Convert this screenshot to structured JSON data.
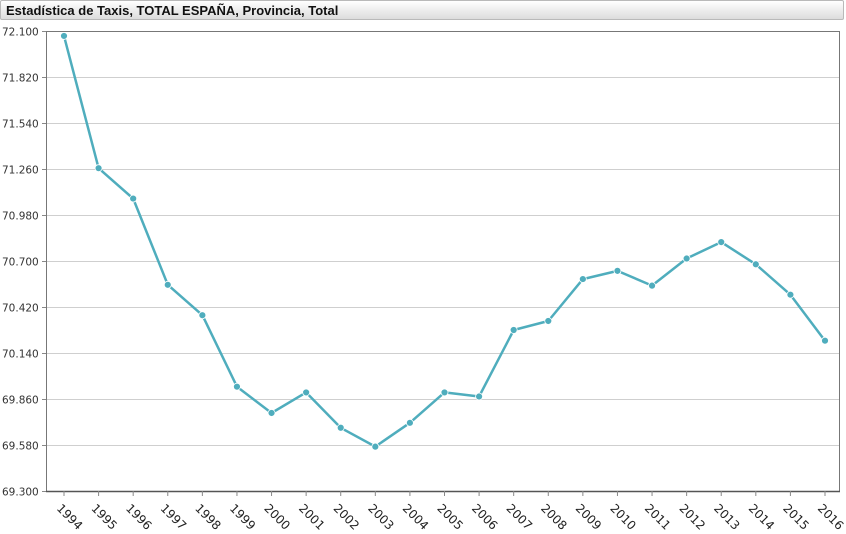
{
  "chart_data": {
    "type": "line",
    "title": "Estadística de Taxis, TOTAL ESPAÑA, Provincia, Total",
    "xlabel": "",
    "ylabel": "",
    "ylim": [
      69300,
      72100
    ],
    "y_ticks": [
      69300,
      69580,
      69860,
      70140,
      70420,
      70700,
      70980,
      71260,
      71540,
      71820,
      72100
    ],
    "y_tick_labels": [
      "69.300",
      "69.580",
      "69.860",
      "70.140",
      "70.420",
      "70.700",
      "70.980",
      "71.260",
      "71.540",
      "71.820",
      "72.100"
    ],
    "grid": true,
    "categories": [
      "1994",
      "1995",
      "1996",
      "1997",
      "1998",
      "1999",
      "2000",
      "2001",
      "2002",
      "2003",
      "2004",
      "2005",
      "2006",
      "2007",
      "2008",
      "2009",
      "2010",
      "2011",
      "2012",
      "2013",
      "2014",
      "2015",
      "2016"
    ],
    "series": [
      {
        "name": "Total",
        "color": "#4fadbd",
        "values": [
          72070,
          71265,
          71080,
          70555,
          70370,
          69935,
          69775,
          69900,
          69685,
          69570,
          69715,
          69900,
          69875,
          70280,
          70335,
          70590,
          70640,
          70550,
          70715,
          70815,
          70680,
          70495,
          70215
        ]
      }
    ]
  }
}
